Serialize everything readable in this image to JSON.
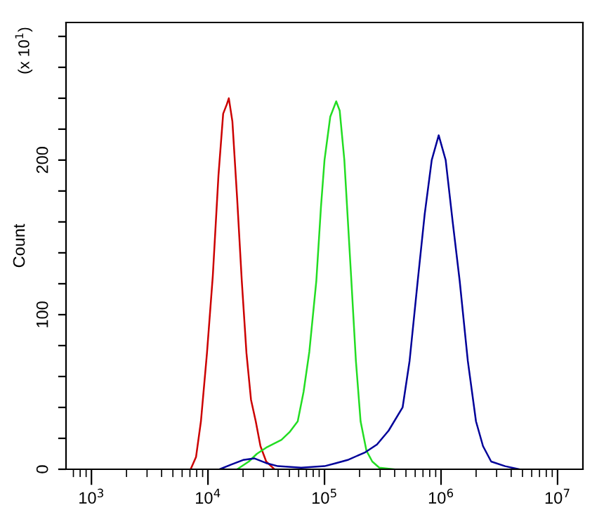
{
  "chart_data": {
    "type": "line",
    "ylabel": "Count",
    "annotations": [
      "(x 10$^{1}$)"
    ],
    "xlim": [
      605,
      16500000
    ],
    "ylim": [
      0,
      289
    ],
    "log": "x",
    "grid": false,
    "legend": false,
    "marker": "none",
    "line_style": "solid",
    "xticks": [
      {
        "value": 1000,
        "label": "10$^{3}$"
      },
      {
        "value": 10000,
        "label": "10$^{4}$"
      },
      {
        "value": 100000,
        "label": "10$^{5}$"
      },
      {
        "value": 1000000,
        "label": "10$^{6}$"
      },
      {
        "value": 10000000,
        "label": "10$^{7}$"
      }
    ],
    "yticks": [
      0,
      {
        "value": 20,
        "label": null
      },
      {
        "value": 40,
        "label": null
      },
      {
        "value": 60,
        "label": null
      },
      {
        "value": 80,
        "label": null
      },
      100,
      {
        "value": 120,
        "label": null
      },
      {
        "value": 140,
        "label": null
      },
      {
        "value": 160,
        "label": null
      },
      {
        "value": 180,
        "label": null
      },
      200,
      {
        "value": 220,
        "label": null
      },
      {
        "value": 240,
        "label": null
      },
      {
        "value": 260,
        "label": null
      },
      {
        "value": 280,
        "label": null
      }
    ],
    "series": [
      {
        "color": "#cc0000",
        "x": [
          7100,
          7900,
          8700,
          9800,
          11000,
          12300,
          13500,
          14500,
          15100,
          16200,
          17800,
          19500,
          21400,
          23400,
          25700,
          28200,
          31600,
          37200
        ],
        "values": [
          0,
          8,
          31,
          75,
          125,
          190,
          230,
          236,
          240,
          225,
          175,
          122,
          75,
          45,
          31,
          15,
          5,
          0
        ]
      },
      {
        "color": "#22dd22",
        "x": [
          17800,
          22400,
          26300,
          31600,
          42700,
          50100,
          58900,
          66100,
          74100,
          85100,
          93300,
          100000,
          112000,
          126000,
          135000,
          148000,
          170000,
          186000,
          204000,
          229000,
          257000,
          295000,
          398000
        ],
        "values": [
          0,
          5,
          10,
          14,
          19,
          24,
          31,
          50,
          76,
          122,
          170,
          200,
          228,
          238,
          232,
          200,
          122,
          70,
          31,
          12,
          5,
          1,
          0
        ]
      },
      {
        "color": "#000099",
        "x": [
          12600,
          15800,
          20000,
          25100,
          31600,
          39800,
          63100,
          100000,
          126000,
          158000,
          224000,
          282000,
          355000,
          468000,
          537000,
          631000,
          724000,
          832000,
          955000,
          1096000,
          1259000,
          1445000,
          1698000,
          1995000,
          2291000,
          2692000,
          3548000,
          4677000
        ],
        "values": [
          0,
          3,
          6,
          7,
          4,
          2,
          1,
          2,
          4,
          6,
          11,
          16,
          25,
          40,
          70,
          122,
          165,
          200,
          216,
          200,
          160,
          122,
          70,
          31,
          15,
          5,
          2,
          0
        ]
      }
    ]
  }
}
